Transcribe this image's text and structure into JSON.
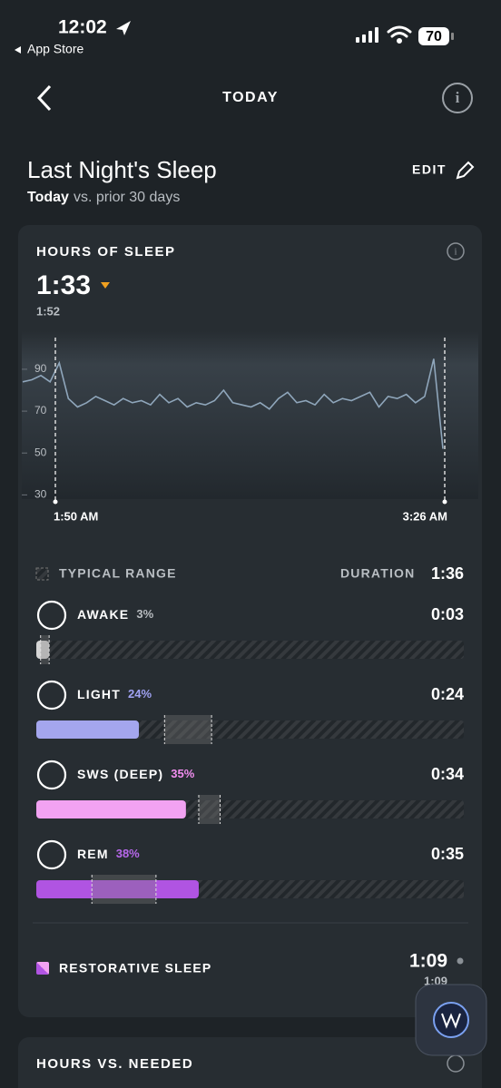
{
  "status_bar": {
    "time": "12:02",
    "back_app": "App Store",
    "battery": "70"
  },
  "nav": {
    "title": "TODAY"
  },
  "header": {
    "title": "Last Night's Sleep",
    "edit": "EDIT",
    "subtitle_bold": "Today",
    "subtitle_rest": "vs. prior 30 days"
  },
  "hours_card": {
    "title": "HOURS OF SLEEP",
    "value": "1:33",
    "prior": "1:52",
    "chart": {
      "type": "line",
      "color": "#8fa6bb",
      "ylim": [
        28,
        106
      ],
      "yticks": [
        30,
        50,
        70,
        90
      ],
      "values": [
        84,
        85,
        87,
        84,
        93,
        76,
        72,
        74,
        77,
        75,
        73,
        76,
        74,
        75,
        73,
        78,
        74,
        76,
        72,
        74,
        73,
        75,
        80,
        74,
        73,
        72,
        74,
        71,
        76,
        79,
        74,
        75,
        73,
        78,
        74,
        76,
        75,
        77,
        79,
        72,
        77,
        76,
        78,
        74,
        77,
        95,
        52
      ],
      "x_labels": [
        "1:50 AM",
        "3:26 AM"
      ]
    },
    "legend": "TYPICAL RANGE",
    "duration_label": "DURATION",
    "duration": "1:36",
    "stages": [
      {
        "name": "AWAKE",
        "percent": 3,
        "percent_label": "3%",
        "duration": "0:03",
        "typical_range": [
          1,
          3
        ],
        "color": "#d6d6d6",
        "label_color": "#b8bcc0"
      },
      {
        "name": "LIGHT",
        "percent": 24,
        "percent_label": "24%",
        "duration": "0:24",
        "typical_range": [
          30,
          41
        ],
        "color": "#a4a6ee",
        "label_color": "#a0a2f2"
      },
      {
        "name": "SWS (DEEP)",
        "percent": 35,
        "percent_label": "35%",
        "duration": "0:34",
        "typical_range": [
          38,
          43
        ],
        "color": "#f2a2f2",
        "label_color": "#f28ef0"
      },
      {
        "name": "REM",
        "percent": 38,
        "percent_label": "38%",
        "duration": "0:35",
        "typical_range": [
          13,
          28
        ],
        "color": "#b054e2",
        "label_color": "#b868ec"
      }
    ],
    "restorative": {
      "label": "RESTORATIVE SLEEP",
      "value": "1:09",
      "prior": "1:09"
    }
  },
  "needed_card": {
    "title": "HOURS VS. NEEDED"
  }
}
